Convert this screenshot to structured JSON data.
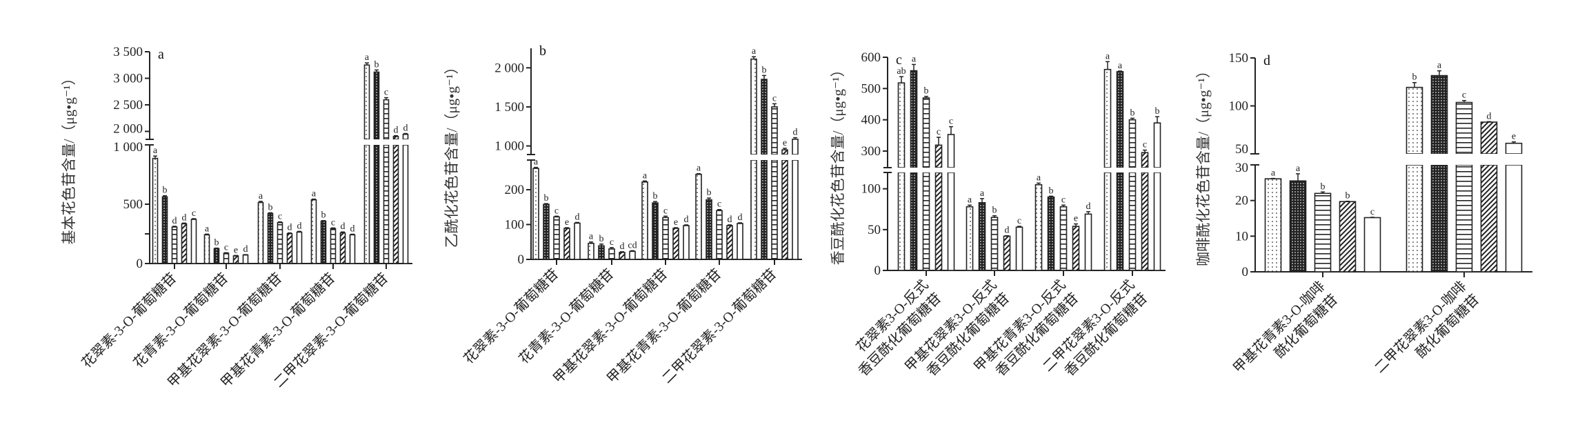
{
  "chart_data": [
    {
      "type": "bar",
      "panel_label": "a",
      "ylabel": "基本花色苷含量/（μg•g⁻¹）",
      "categories": [
        [
          "花翠素-3-O-葡萄糖苷"
        ],
        [
          "花青素-3-O-葡萄糖苷"
        ],
        [
          "甲基花翠素-3-O-葡萄糖苷"
        ],
        [
          "甲基花青素-3-O-葡萄糖苷"
        ],
        [
          "二甲花翠素-3-O-葡萄糖苷"
        ]
      ],
      "y_lower_range": [
        0,
        1000
      ],
      "y_upper_range": [
        1850,
        3500
      ],
      "y_ticks": [
        {
          "value": 0,
          "label": "0"
        },
        {
          "value": 250,
          "label": ""
        },
        {
          "value": 500,
          "label": "500"
        },
        {
          "value": 1000,
          "label": "1 000"
        },
        {
          "value": 2000,
          "label": "2 000"
        },
        {
          "value": 2500,
          "label": "2 500"
        },
        {
          "value": 3000,
          "label": "3 000"
        },
        {
          "value": 3500,
          "label": "3 500"
        }
      ],
      "series_patterns": [
        "dotted",
        "checkered",
        "horizontal-lines",
        "diagonal-hatch",
        "blank"
      ],
      "values": [
        [
          886,
          562,
          308,
          335,
          372
        ],
        [
          242,
          126,
          87,
          64,
          72
        ],
        [
          514,
          422,
          345,
          252,
          265
        ],
        [
          537,
          357,
          295,
          258,
          242
        ],
        [
          3250,
          3117,
          2595,
          1905,
          1945
        ]
      ],
      "errors": [
        [
          20,
          10,
          6,
          6,
          6
        ],
        [
          6,
          4,
          4,
          4,
          3
        ],
        [
          10,
          6,
          6,
          6,
          6
        ],
        [
          6,
          5,
          5,
          8,
          5
        ],
        [
          40,
          40,
          40,
          15,
          15
        ]
      ],
      "letters": [
        [
          "a",
          "b",
          "d",
          "d",
          "c"
        ],
        [
          "a",
          "b",
          "c",
          "e",
          "d"
        ],
        [
          "a",
          "b",
          "c",
          "d",
          "d"
        ],
        [
          "a",
          "b",
          "c",
          "d",
          "d"
        ],
        [
          "a",
          "b",
          "c",
          "d",
          "d"
        ]
      ]
    },
    {
      "type": "bar",
      "panel_label": "b",
      "ylabel": "乙酰化花色苷含量/（μg•g⁻¹）",
      "categories": [
        [
          "花翠素-3-O-葡萄糖苷"
        ],
        [
          "花青素-3-O-葡萄糖苷"
        ],
        [
          "甲基花翠素-3-O-葡萄糖苷"
        ],
        [
          "甲基花青素-3-O-葡萄糖苷"
        ],
        [
          "二甲花翠素-3-O-葡萄糖苷"
        ]
      ],
      "y_lower_range": [
        0,
        285
      ],
      "y_upper_range": [
        890,
        2250
      ],
      "y_ticks": [
        {
          "value": 0,
          "label": "0"
        },
        {
          "value": 100,
          "label": "100"
        },
        {
          "value": 200,
          "label": "200"
        },
        {
          "value": 1000,
          "label": "1 000"
        },
        {
          "value": 1500,
          "label": "1 500"
        },
        {
          "value": 2000,
          "label": "2 000"
        }
      ],
      "series_patterns": [
        "dotted",
        "checkered",
        "horizontal-lines",
        "diagonal-hatch",
        "blank"
      ],
      "values": [
        [
          261,
          158,
          122,
          89,
          104
        ],
        [
          46,
          39,
          30,
          20,
          23
        ],
        [
          222,
          162,
          120,
          89,
          97
        ],
        [
          244,
          171,
          140,
          97,
          103
        ],
        [
          2112,
          1852,
          1500,
          950,
          1086
        ]
      ],
      "errors": [
        [
          3,
          2,
          2,
          2,
          2
        ],
        [
          4,
          5,
          4,
          2,
          2
        ],
        [
          3,
          4,
          4,
          2,
          2
        ],
        [
          2,
          5,
          3,
          2,
          2
        ],
        [
          30,
          50,
          40,
          20,
          20
        ]
      ],
      "letters": [
        [
          "a",
          "b",
          "c",
          "e",
          "d"
        ],
        [
          "a",
          "b",
          "c",
          "d",
          "cd"
        ],
        [
          "a",
          "b",
          "c",
          "e",
          "d"
        ],
        [
          "a",
          "b",
          "c",
          "d",
          "d"
        ],
        [
          "a",
          "b",
          "c",
          "e",
          "d"
        ]
      ]
    },
    {
      "type": "bar",
      "panel_label": "c",
      "ylabel": "香豆酰化花色苷含量/（μg•g⁻¹）",
      "categories": [
        [
          "花翠素3-O-反式",
          "香豆酰化葡萄糖苷"
        ],
        [
          "甲基花翠素3-O-反式",
          "香豆酰化葡萄糖苷"
        ],
        [
          "甲基花青素3-O-反式",
          "香豆酰化葡萄糖苷"
        ],
        [
          "二甲花翠素3-O-反式",
          "香豆酰化葡萄糖苷"
        ]
      ],
      "y_lower_range": [
        0,
        120
      ],
      "y_upper_range": [
        247,
        600
      ],
      "y_ticks": [
        {
          "value": 0,
          "label": "0"
        },
        {
          "value": 50,
          "label": "50"
        },
        {
          "value": 100,
          "label": "100"
        },
        {
          "value": 300,
          "label": "300"
        },
        {
          "value": 400,
          "label": "400"
        },
        {
          "value": 500,
          "label": "500"
        },
        {
          "value": 600,
          "label": "600"
        }
      ],
      "series_patterns": [
        "dotted",
        "checkered",
        "horizontal-lines",
        "diagonal-hatch",
        "blank"
      ],
      "values": [
        [
          518,
          557,
          470,
          319,
          353
        ],
        [
          78,
          83,
          65,
          42,
          53
        ],
        [
          105,
          90,
          78,
          54,
          69
        ],
        [
          561,
          554,
          400,
          295,
          390
        ]
      ],
      "errors": [
        [
          20,
          20,
          5,
          25,
          25
        ],
        [
          2,
          5,
          2,
          0.5,
          1
        ],
        [
          2,
          1,
          2,
          3,
          3
        ],
        [
          25,
          2,
          5,
          8,
          20
        ]
      ],
      "letters": [
        [
          "ab",
          "a",
          "b",
          "c",
          "c"
        ],
        [
          "a",
          "a",
          "b",
          "d",
          "c"
        ],
        [
          "a",
          "b",
          "c",
          "e",
          "d"
        ],
        [
          "a",
          "a",
          "b",
          "c",
          "b"
        ]
      ]
    },
    {
      "type": "bar",
      "panel_label": "d",
      "ylabel": "咖啡酰化花色苷含量/（μg•g⁻¹）",
      "categories": [
        [
          "甲基花青素3-O-咖啡",
          "酰化葡萄糖苷"
        ],
        [
          "二甲花翠素3-O-咖啡",
          "酰化葡萄糖苷"
        ]
      ],
      "y_lower_range": [
        0,
        30
      ],
      "y_upper_range": [
        50,
        150
      ],
      "y_ticks": [
        {
          "value": 0,
          "label": "0"
        },
        {
          "value": 10,
          "label": "10"
        },
        {
          "value": 20,
          "label": "20"
        },
        {
          "value": 30,
          "label": "30"
        },
        {
          "value": 50,
          "label": "50"
        },
        {
          "value": 100,
          "label": "100"
        },
        {
          "value": 150,
          "label": "150"
        }
      ],
      "series_patterns": [
        "dotted",
        "checkered",
        "horizontal-lines",
        "diagonal-hatch",
        "blank"
      ],
      "values": [
        [
          26.1,
          25.5,
          22.0,
          19.7,
          15.2
        ],
        [
          119.3,
          131.6,
          103.6,
          83.1,
          61.0
        ]
      ],
      "errors": [
        [
          0.1,
          2.0,
          0.4,
          0.1,
          0.1
        ],
        [
          5,
          5,
          2,
          0.5,
          1.5
        ]
      ],
      "letters": [
        [
          "a",
          "a",
          "b",
          "b",
          "c"
        ],
        [
          "b",
          "a",
          "c",
          "d",
          "e"
        ]
      ]
    }
  ]
}
